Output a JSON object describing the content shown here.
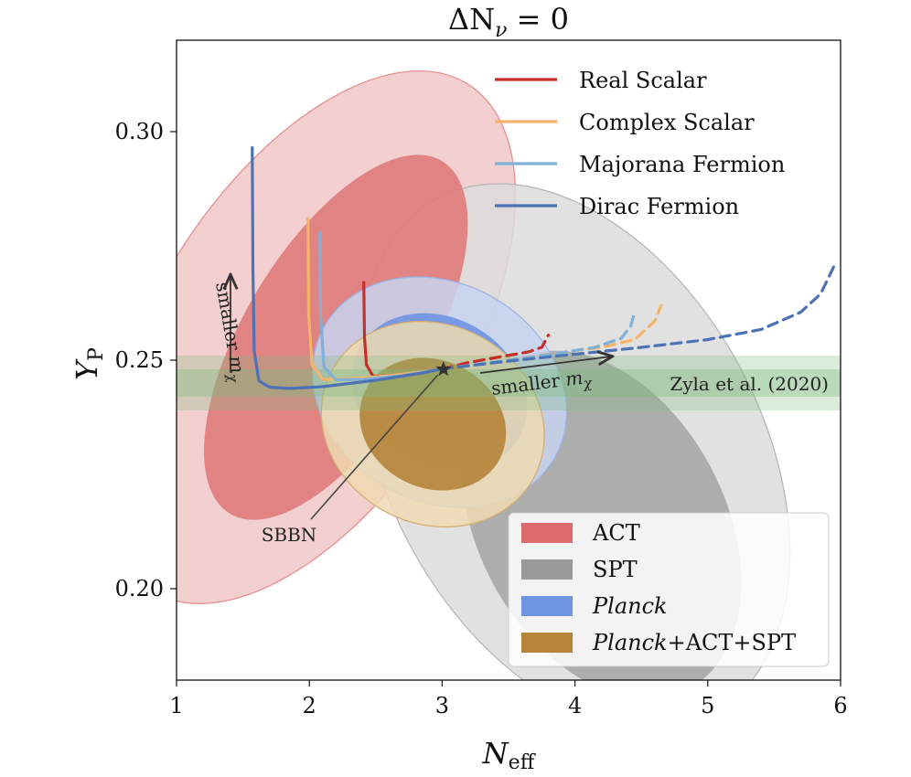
{
  "chart_data": {
    "type": "line",
    "title": "ΔN_ν = 0",
    "title_parts": {
      "delta": "ΔN",
      "sub": "ν",
      "rest": " = 0"
    },
    "xlabel": "N_eff",
    "xlabel_parts": {
      "main": "N",
      "sub": "eff"
    },
    "ylabel": "Y_P",
    "ylabel_parts": {
      "main": "Y",
      "sub": "P"
    },
    "xlim": [
      1,
      6
    ],
    "ylim": [
      0.18,
      0.32
    ],
    "xticks": [
      1,
      2,
      3,
      4,
      5,
      6
    ],
    "xtick_labels": [
      "1",
      "2",
      "3",
      "4",
      "5",
      "6"
    ],
    "yticks": [
      0.2,
      0.25,
      0.3
    ],
    "ytick_labels": [
      "0.20",
      "0.25",
      "0.30"
    ],
    "grid": false,
    "colors": {
      "real_scalar": "#c62f28",
      "complex_scalar": "#f5b46b",
      "majorana": "#7fb0d8",
      "dirac": "#4d72b5",
      "act": "#de6b6b",
      "spt": "#9a9a9a",
      "planck": "#6f95e0",
      "combined": "#b5843a",
      "zyla": "#7dbb7d"
    },
    "legend_top": {
      "placement": "top-right",
      "entries": [
        {
          "label": "Real Scalar",
          "color": "#c62f28"
        },
        {
          "label": "Complex Scalar",
          "color": "#f5b46b"
        },
        {
          "label": "Majorana Fermion",
          "color": "#7fb0d8"
        },
        {
          "label": "Dirac Fermion",
          "color": "#4d72b5"
        }
      ]
    },
    "legend_bottom": {
      "placement": "bottom-right",
      "entries": [
        {
          "label": "ACT",
          "color": "#de6b6b",
          "italic": false
        },
        {
          "label": "SPT",
          "color": "#9a9a9a",
          "italic": false
        },
        {
          "label": "Planck",
          "color": "#6f95e0",
          "italic": true
        },
        {
          "label_italic": "Planck",
          "label_rest": "+ACT+SPT",
          "color": "#b5843a",
          "italic": true
        }
      ]
    },
    "contours": [
      {
        "name": "ACT",
        "level": 2,
        "cx": 2.0,
        "cy": 0.255,
        "rx": 2.25,
        "ry": 0.034,
        "angle_deg": 58,
        "color": "#f1c7c7",
        "stroke": "#e69090"
      },
      {
        "name": "SPT",
        "level": 2,
        "cx": 4.0,
        "cy": 0.229,
        "rx": 2.2,
        "ry": 0.041,
        "angle_deg": -62,
        "color": "#dcdcdc",
        "stroke": "#b8b8b8"
      },
      {
        "name": "SPT",
        "level": 1,
        "cx": 4.2,
        "cy": 0.214,
        "rx": 1.4,
        "ry": 0.027,
        "angle_deg": -62,
        "color": "#a7a7a7",
        "stroke": "none"
      },
      {
        "name": "ACT",
        "level": 1,
        "cx": 2.2,
        "cy": 0.255,
        "rx": 1.55,
        "ry": 0.02,
        "angle_deg": 59,
        "color": "#e07a7a",
        "stroke": "none"
      },
      {
        "name": "Planck",
        "level": 2,
        "cx": 2.98,
        "cy": 0.243,
        "rx": 0.82,
        "ry": 0.029,
        "angle_deg": 60,
        "color": "#c7d3f0",
        "stroke": "#9cb3e6"
      },
      {
        "name": "Planck",
        "level": 1,
        "cx": 2.98,
        "cy": 0.243,
        "rx": 0.56,
        "ry": 0.02,
        "angle_deg": 60,
        "color": "#7095e3",
        "stroke": "none"
      },
      {
        "name": "Planck+ACT+SPT",
        "level": 2,
        "cx": 2.93,
        "cy": 0.236,
        "rx": 0.75,
        "ry": 0.025,
        "angle_deg": 63,
        "color": "#efd9b2",
        "stroke": "#d4ae72"
      },
      {
        "name": "Planck+ACT+SPT",
        "level": 1,
        "cx": 2.93,
        "cy": 0.236,
        "rx": 0.48,
        "ry": 0.0165,
        "angle_deg": 63,
        "color": "#b58339",
        "stroke": "none"
      }
    ],
    "band": {
      "label": "Zyla et al. (2020)",
      "y_center": 0.245,
      "y_sigma1": 0.003,
      "y_sigma2": 0.006,
      "color": "#7dbb7d"
    },
    "series": [
      {
        "name": "Real Scalar",
        "color": "#c62f28",
        "solid": {
          "x": [
            2.41,
            2.415,
            2.43,
            2.48,
            2.55,
            2.65,
            2.8,
            2.95,
            3.0
          ],
          "y": [
            0.267,
            0.255,
            0.249,
            0.2465,
            0.2465,
            0.2467,
            0.2472,
            0.2478,
            0.2481
          ]
        },
        "dashed": {
          "x": [
            3.0,
            3.2,
            3.45,
            3.65,
            3.75,
            3.8
          ],
          "y": [
            0.2481,
            0.2495,
            0.2508,
            0.2518,
            0.2528,
            0.2555
          ]
        }
      },
      {
        "name": "Complex Scalar",
        "color": "#f5b46b",
        "solid": {
          "x": [
            1.99,
            1.995,
            2.02,
            2.1,
            2.3,
            2.6,
            2.9,
            3.0
          ],
          "y": [
            0.281,
            0.26,
            0.249,
            0.2458,
            0.2459,
            0.2466,
            0.2476,
            0.2481
          ]
        },
        "dashed": {
          "x": [
            3.0,
            3.4,
            3.8,
            4.2,
            4.45,
            4.6,
            4.65
          ],
          "y": [
            0.2481,
            0.2496,
            0.2513,
            0.2528,
            0.2545,
            0.2585,
            0.262
          ]
        }
      },
      {
        "name": "Majorana Fermion",
        "color": "#7fb0d8",
        "solid": {
          "x": [
            2.08,
            2.085,
            2.11,
            2.2,
            2.4,
            2.7,
            2.95,
            3.0
          ],
          "y": [
            0.278,
            0.26,
            0.2485,
            0.2457,
            0.2458,
            0.2466,
            0.2478,
            0.2481
          ]
        },
        "dashed": {
          "x": [
            3.0,
            3.4,
            3.8,
            4.15,
            4.35,
            4.42,
            4.45
          ],
          "y": [
            0.2481,
            0.2496,
            0.2512,
            0.2528,
            0.2548,
            0.2575,
            0.2605
          ]
        }
      },
      {
        "name": "Dirac Fermion",
        "color": "#4d72b5",
        "solid": {
          "x": [
            1.57,
            1.575,
            1.585,
            1.62,
            1.7,
            1.85,
            2.1,
            2.5,
            2.85,
            3.0
          ],
          "y": [
            0.2965,
            0.27,
            0.252,
            0.2455,
            0.2441,
            0.2438,
            0.2442,
            0.2456,
            0.2472,
            0.2481
          ]
        },
        "dashed": {
          "x": [
            3.0,
            3.5,
            4.0,
            4.5,
            5.0,
            5.4,
            5.7,
            5.85,
            5.95
          ],
          "y": [
            0.2481,
            0.2498,
            0.2513,
            0.2528,
            0.2545,
            0.2567,
            0.2605,
            0.2645,
            0.2705
          ]
        }
      }
    ],
    "sbbn": {
      "label": "SBBN",
      "x": 3.01,
      "y": 0.248
    },
    "annotations": [
      {
        "text": "smaller m",
        "sub": "χ",
        "where": "left vertical arrow"
      },
      {
        "text": "smaller m",
        "sub": "χ",
        "where": "horizontal arrow right of SBBN"
      }
    ]
  }
}
